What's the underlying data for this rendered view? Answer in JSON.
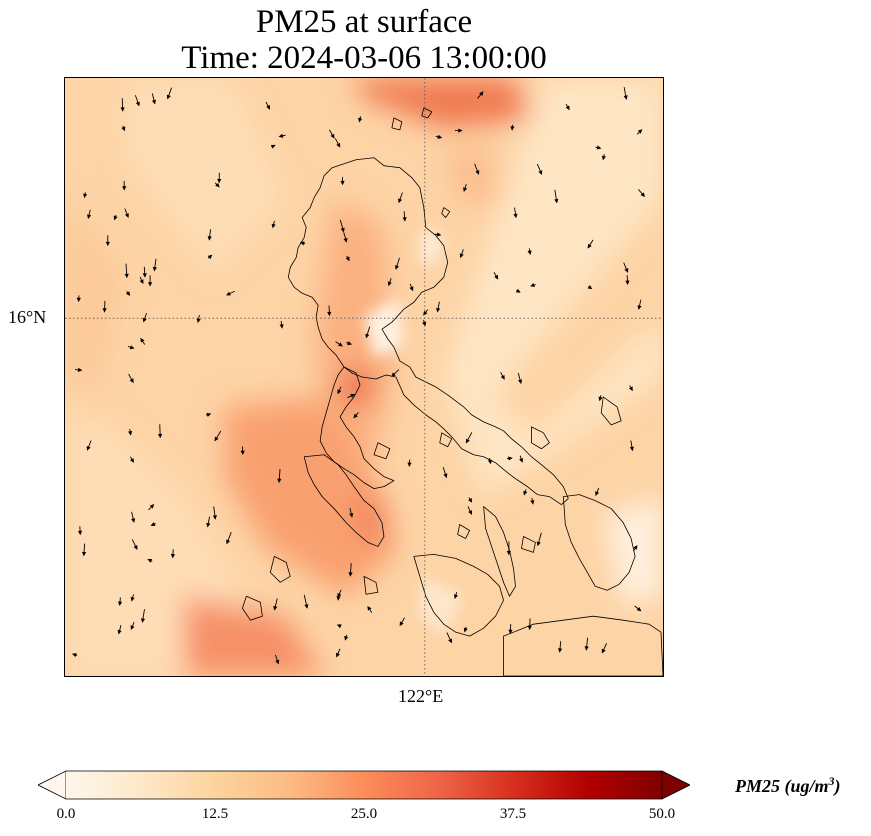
{
  "title": {
    "line1": "PM25 at surface",
    "line2": "Time: 2024-03-06 13:00:00"
  },
  "axes": {
    "lat_label": "16°N",
    "lon_label": "122°E"
  },
  "colorbar": {
    "label_main": "PM25 (ug/m",
    "label_sup": "3",
    "label_tail": ")",
    "ticks": [
      "0.0",
      "12.5",
      "25.0",
      "37.5",
      "50.0"
    ],
    "min": 0.0,
    "max": 50.0,
    "extend": "both",
    "colormap": [
      "#fff7ec",
      "#fee8c8",
      "#fdd49e",
      "#fdbb84",
      "#fc8d59",
      "#ef6548",
      "#d7301f",
      "#b30000",
      "#7f0000"
    ]
  },
  "map": {
    "gridlines": "dotted",
    "ocean_background": "#fdd4a6",
    "coastline_color": "#000000",
    "wind_arrow_color": "#000000"
  }
}
